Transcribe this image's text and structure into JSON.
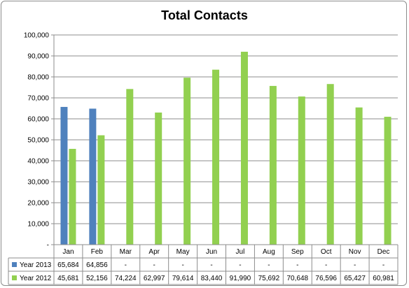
{
  "chart_data": {
    "type": "bar",
    "title": "Total Contacts",
    "categories": [
      "Jan",
      "Feb",
      "Mar",
      "Apr",
      "May",
      "Jun",
      "Jul",
      "Aug",
      "Sep",
      "Oct",
      "Nov",
      "Dec"
    ],
    "series": [
      {
        "name": "Year 2013",
        "color": "#4f81bd",
        "values": [
          65684,
          64856,
          null,
          null,
          null,
          null,
          null,
          null,
          null,
          null,
          null,
          null
        ],
        "labels": [
          "65,684",
          "64,856",
          "-",
          "-",
          "-",
          "-",
          "-",
          "-",
          "-",
          "-",
          "-",
          "-"
        ]
      },
      {
        "name": "Year 2012",
        "color": "#92d050",
        "values": [
          45681,
          52156,
          74224,
          62997,
          79614,
          83440,
          91990,
          75692,
          70648,
          76596,
          65427,
          60981
        ],
        "labels": [
          "45,681",
          "52,156",
          "74,224",
          "62,997",
          "79,614",
          "83,440",
          "91,990",
          "75,692",
          "70,648",
          "76,596",
          "65,427",
          "60,981"
        ]
      }
    ],
    "ylim": [
      0,
      100000
    ],
    "yticks": [
      0,
      10000,
      20000,
      30000,
      40000,
      50000,
      60000,
      70000,
      80000,
      90000,
      100000
    ],
    "ytick_labels": [
      "-",
      "10,000",
      "20,000",
      "30,000",
      "40,000",
      "50,000",
      "60,000",
      "70,000",
      "80,000",
      "90,000",
      "100,000"
    ],
    "grid": true,
    "legend": "data-table"
  }
}
